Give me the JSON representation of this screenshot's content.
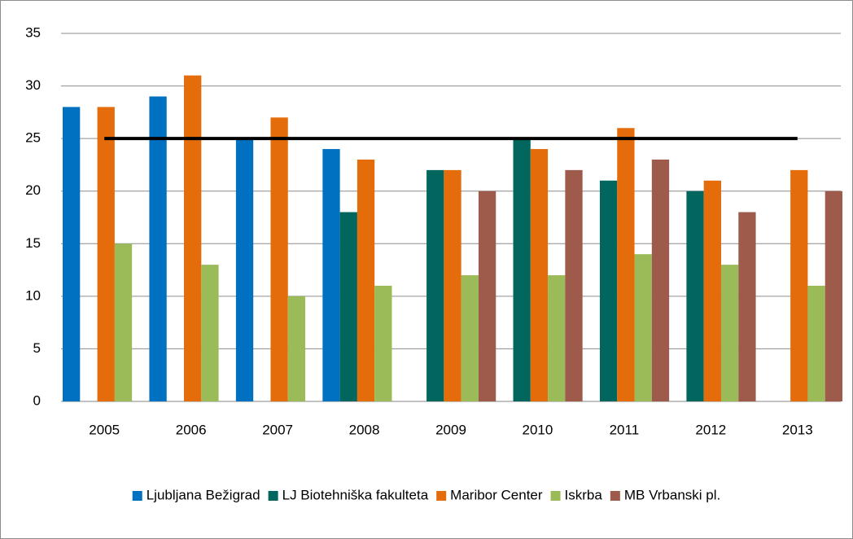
{
  "chart_data": {
    "type": "bar",
    "categories": [
      "2005",
      "2006",
      "2007",
      "2008",
      "2009",
      "2010",
      "2011",
      "2012",
      "2013"
    ],
    "series": [
      {
        "name": "Ljubljana Bežigrad",
        "color": "#0070c0",
        "values": [
          28,
          29,
          25,
          24,
          null,
          null,
          null,
          null,
          null
        ]
      },
      {
        "name": "LJ Biotehniška fakulteta",
        "color": "#00665e",
        "values": [
          null,
          null,
          null,
          18,
          22,
          25,
          21,
          20,
          null
        ]
      },
      {
        "name": "Maribor Center",
        "color": "#e46c0a",
        "values": [
          28,
          31,
          27,
          23,
          22,
          24,
          26,
          21,
          22
        ]
      },
      {
        "name": "Iskrba",
        "color": "#9bbb59",
        "values": [
          15,
          13,
          10,
          11,
          12,
          12,
          14,
          13,
          11
        ]
      },
      {
        "name": "MB Vrbanski pl.",
        "color": "#9e5a4b",
        "values": [
          null,
          null,
          null,
          null,
          20,
          22,
          23,
          18,
          20
        ]
      }
    ],
    "reference_line": {
      "value": 25,
      "color": "#000000"
    },
    "ylim": [
      0,
      35
    ],
    "yticks": [
      0,
      5,
      10,
      15,
      20,
      25,
      30,
      35
    ],
    "grid": true,
    "legend": "bottom"
  }
}
